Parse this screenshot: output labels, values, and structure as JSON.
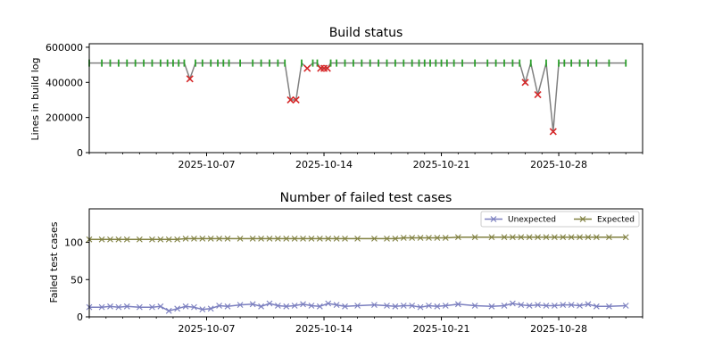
{
  "charts": [
    {
      "type": "line",
      "title": "Build status",
      "ylabel": "Lines in build log",
      "xlabel": "",
      "xlim": [
        "2025-09-30",
        "2025-11-02"
      ],
      "ylim": [
        0,
        620000
      ],
      "x_ticks": [
        "2025-10-07",
        "2025-10-14",
        "2025-10-21",
        "2025-10-28"
      ],
      "y_ticks": [
        "0",
        "200000",
        "400000",
        "600000"
      ],
      "y_tick_values": [
        0,
        200000,
        400000,
        600000
      ],
      "grid": false,
      "line_color": "#808080",
      "pass_color": "#2ca02c",
      "fail_color": "#d62728",
      "series": [
        {
          "x": [
            "2025-09-30",
            "2025-10-01",
            "2025-10-01",
            "2025-10-02",
            "2025-10-02",
            "2025-10-03",
            "2025-10-03",
            "2025-10-04",
            "2025-10-04",
            "2025-10-05",
            "2025-10-05",
            "2025-10-05",
            "2025-10-06",
            "2025-10-06",
            "2025-10-06",
            "2025-10-07",
            "2025-10-07",
            "2025-10-08",
            "2025-10-08",
            "2025-10-08",
            "2025-10-09",
            "2025-10-10",
            "2025-10-10",
            "2025-10-11",
            "2025-10-11",
            "2025-10-12",
            "2025-10-12",
            "2025-10-12",
            "2025-10-13",
            "2025-10-13",
            "2025-10-13",
            "2025-10-14",
            "2025-10-14",
            "2025-10-14",
            "2025-10-14",
            "2025-10-14",
            "2025-10-15",
            "2025-10-15",
            "2025-10-16",
            "2025-10-16",
            "2025-10-17",
            "2025-10-17",
            "2025-10-18",
            "2025-10-18",
            "2025-10-19",
            "2025-10-19",
            "2025-10-20",
            "2025-10-20",
            "2025-10-20",
            "2025-10-21",
            "2025-10-21",
            "2025-10-21",
            "2025-10-22",
            "2025-10-22",
            "2025-10-23",
            "2025-10-24",
            "2025-10-24",
            "2025-10-25",
            "2025-10-25",
            "2025-10-26",
            "2025-10-26",
            "2025-10-26",
            "2025-10-27",
            "2025-10-27",
            "2025-10-28",
            "2025-10-28",
            "2025-10-28",
            "2025-10-29",
            "2025-10-29",
            "2025-10-30",
            "2025-10-30",
            "2025-10-31",
            "2025-11-01"
          ],
          "y": [
            510000,
            510000,
            510000,
            510000,
            510000,
            510000,
            510000,
            510000,
            510000,
            510000,
            510000,
            510000,
            510000,
            420000,
            510000,
            510000,
            510000,
            510000,
            510000,
            510000,
            510000,
            510000,
            510000,
            510000,
            510000,
            510000,
            300000,
            300000,
            510000,
            480000,
            510000,
            510000,
            480000,
            480000,
            480000,
            510000,
            510000,
            510000,
            510000,
            510000,
            510000,
            510000,
            510000,
            510000,
            510000,
            510000,
            510000,
            510000,
            510000,
            510000,
            510000,
            510000,
            510000,
            510000,
            510000,
            510000,
            510000,
            510000,
            510000,
            510000,
            400000,
            510000,
            330000,
            510000,
            120000,
            510000,
            510000,
            510000,
            510000,
            510000,
            510000,
            510000,
            510000
          ],
          "status": [
            "pass",
            "pass",
            "pass",
            "pass",
            "pass",
            "pass",
            "pass",
            "pass",
            "pass",
            "pass",
            "pass",
            "pass",
            "pass",
            "fail",
            "pass",
            "pass",
            "pass",
            "pass",
            "pass",
            "pass",
            "pass",
            "pass",
            "pass",
            "pass",
            "pass",
            "pass",
            "fail",
            "fail",
            "pass",
            "fail",
            "pass",
            "pass",
            "fail",
            "fail",
            "fail",
            "pass",
            "pass",
            "pass",
            "pass",
            "pass",
            "pass",
            "pass",
            "pass",
            "pass",
            "pass",
            "pass",
            "pass",
            "pass",
            "pass",
            "pass",
            "pass",
            "pass",
            "pass",
            "pass",
            "pass",
            "pass",
            "pass",
            "pass",
            "pass",
            "pass",
            "fail",
            "pass",
            "fail",
            "pass",
            "fail",
            "pass",
            "pass",
            "pass",
            "pass",
            "pass",
            "pass",
            "pass",
            "pass"
          ]
        }
      ]
    },
    {
      "type": "line",
      "title": "Number of failed test cases",
      "ylabel": "Failed test cases",
      "xlabel": "",
      "xlim": [
        "2025-09-30",
        "2025-11-02"
      ],
      "ylim": [
        0,
        145
      ],
      "x_ticks": [
        "2025-10-07",
        "2025-10-14",
        "2025-10-21",
        "2025-10-28"
      ],
      "y_ticks": [
        "0",
        "50",
        "100"
      ],
      "y_tick_values": [
        0,
        50,
        100
      ],
      "grid": false,
      "legend_position": "top-right",
      "series": [
        {
          "name": "Unexpected",
          "color": "#7b7fbf",
          "x": [
            "2025-09-30",
            "2025-10-01",
            "2025-10-01",
            "2025-10-02",
            "2025-10-02",
            "2025-10-03",
            "2025-10-04",
            "2025-10-04",
            "2025-10-05",
            "2025-10-05",
            "2025-10-06",
            "2025-10-06",
            "2025-10-07",
            "2025-10-07",
            "2025-10-08",
            "2025-10-08",
            "2025-10-09",
            "2025-10-10",
            "2025-10-10",
            "2025-10-11",
            "2025-10-11",
            "2025-10-12",
            "2025-10-12",
            "2025-10-13",
            "2025-10-13",
            "2025-10-14",
            "2025-10-14",
            "2025-10-15",
            "2025-10-15",
            "2025-10-16",
            "2025-10-17",
            "2025-10-18",
            "2025-10-18",
            "2025-10-19",
            "2025-10-19",
            "2025-10-20",
            "2025-10-20",
            "2025-10-21",
            "2025-10-21",
            "2025-10-22",
            "2025-10-23",
            "2025-10-24",
            "2025-10-25",
            "2025-10-25",
            "2025-10-26",
            "2025-10-26",
            "2025-10-27",
            "2025-10-27",
            "2025-10-28",
            "2025-10-28",
            "2025-10-29",
            "2025-10-29",
            "2025-10-30",
            "2025-10-30",
            "2025-10-31",
            "2025-11-01"
          ],
          "y": [
            13,
            13,
            14,
            13,
            14,
            13,
            13,
            14,
            8,
            11,
            14,
            13,
            10,
            11,
            15,
            14,
            16,
            17,
            14,
            18,
            15,
            14,
            15,
            17,
            15,
            14,
            18,
            16,
            14,
            15,
            16,
            15,
            14,
            15,
            15,
            13,
            15,
            14,
            15,
            17,
            15,
            14,
            15,
            18,
            16,
            15,
            16,
            15,
            15,
            16,
            16,
            15,
            17,
            14,
            14,
            15
          ]
        },
        {
          "name": "Expected",
          "color": "#808040",
          "x": [
            "2025-09-30",
            "2025-10-01",
            "2025-10-01",
            "2025-10-02",
            "2025-10-02",
            "2025-10-03",
            "2025-10-04",
            "2025-10-04",
            "2025-10-05",
            "2025-10-05",
            "2025-10-06",
            "2025-10-06",
            "2025-10-07",
            "2025-10-07",
            "2025-10-08",
            "2025-10-08",
            "2025-10-09",
            "2025-10-10",
            "2025-10-10",
            "2025-10-11",
            "2025-10-11",
            "2025-10-12",
            "2025-10-12",
            "2025-10-13",
            "2025-10-13",
            "2025-10-14",
            "2025-10-14",
            "2025-10-15",
            "2025-10-15",
            "2025-10-16",
            "2025-10-17",
            "2025-10-18",
            "2025-10-18",
            "2025-10-19",
            "2025-10-19",
            "2025-10-20",
            "2025-10-20",
            "2025-10-21",
            "2025-10-21",
            "2025-10-22",
            "2025-10-23",
            "2025-10-24",
            "2025-10-25",
            "2025-10-25",
            "2025-10-26",
            "2025-10-26",
            "2025-10-27",
            "2025-10-27",
            "2025-10-28",
            "2025-10-28",
            "2025-10-29",
            "2025-10-29",
            "2025-10-30",
            "2025-10-30",
            "2025-10-31",
            "2025-11-01"
          ],
          "y": [
            104,
            104,
            104,
            104,
            104,
            104,
            104,
            104,
            104,
            104,
            105,
            105,
            105,
            105,
            105,
            105,
            105,
            105,
            105,
            105,
            105,
            105,
            105,
            105,
            105,
            105,
            105,
            105,
            105,
            105,
            105,
            105,
            105,
            106,
            106,
            106,
            106,
            106,
            106,
            107,
            107,
            107,
            107,
            107,
            107,
            107,
            107,
            107,
            107,
            107,
            107,
            107,
            107,
            107,
            107,
            107
          ]
        }
      ]
    }
  ]
}
